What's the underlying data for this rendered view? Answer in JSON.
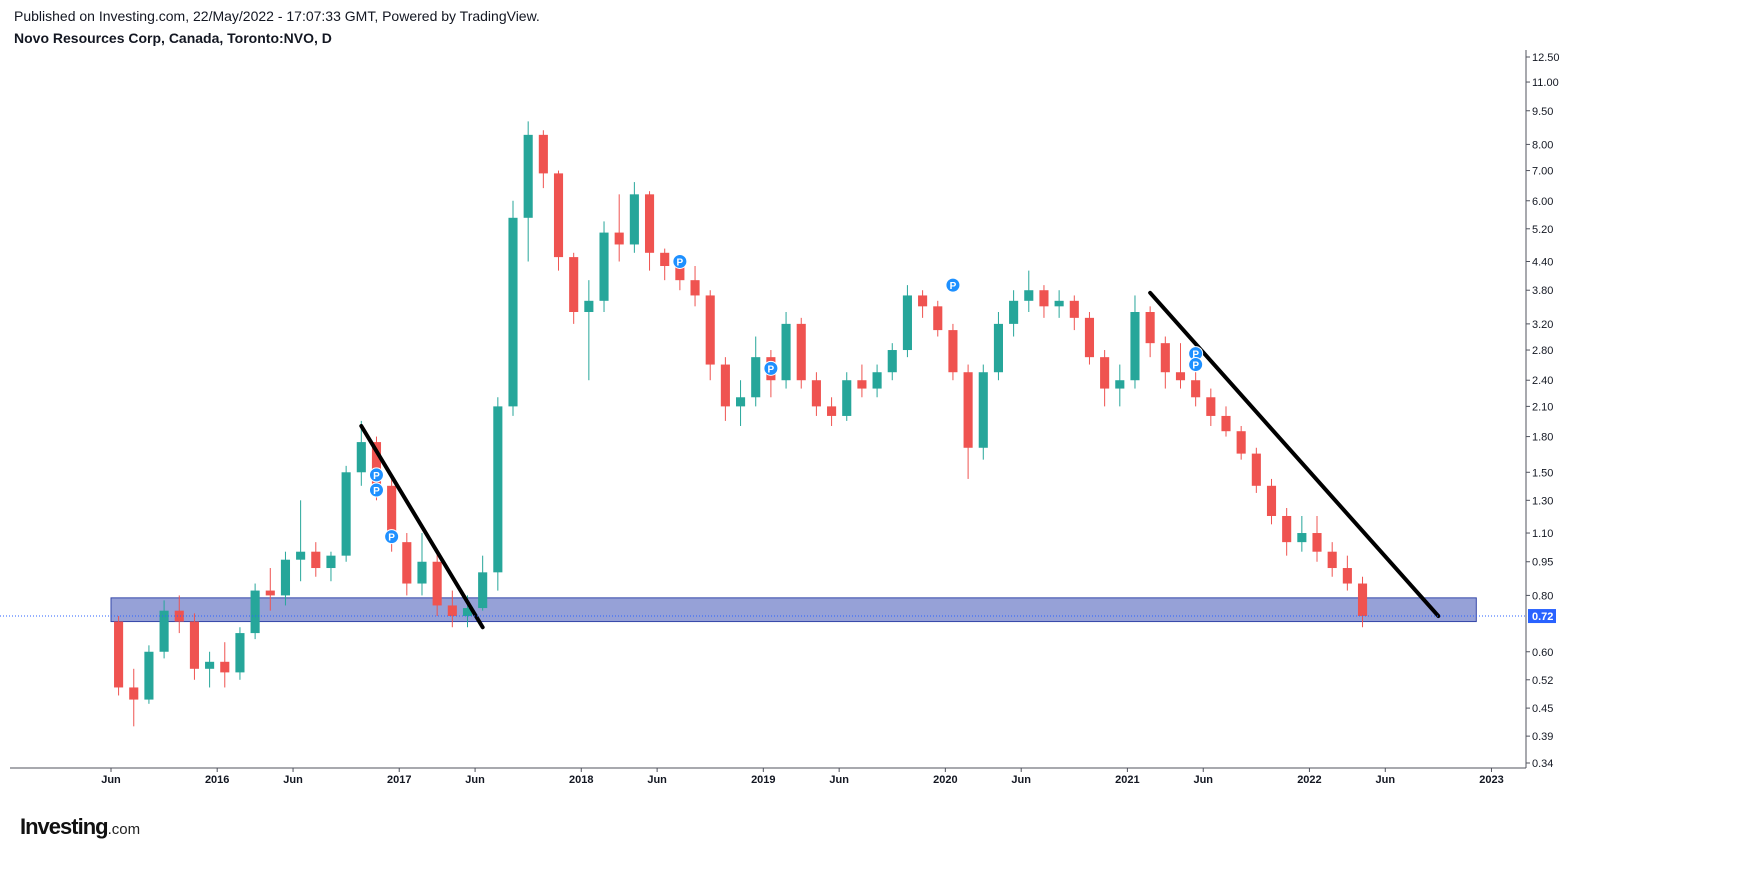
{
  "header": {
    "published": "Published on Investing.com, 22/May/2022 - 17:07:33 GMT, Powered by TradingView.",
    "symbol": "Novo Resources Corp, Canada, Toronto:NVO, D"
  },
  "logo": {
    "main": "Investing",
    "suffix": ".com"
  },
  "colors": {
    "up": "#26a69a",
    "down": "#ef5350",
    "band_fill": "#8b97d3",
    "band_stroke": "#3346a8",
    "trendline": "#000000",
    "marker": "#1e90ff",
    "price_line": "#2962ff",
    "price_tag": "#2962ff"
  },
  "chart_data": {
    "type": "candlestick",
    "scale": "log",
    "y_ticks": [
      "12.50",
      "11.00",
      "9.50",
      "8.00",
      "7.00",
      "6.00",
      "5.20",
      "4.40",
      "3.80",
      "3.20",
      "2.80",
      "2.40",
      "2.10",
      "1.80",
      "1.50",
      "1.30",
      "1.10",
      "0.95",
      "0.80",
      "0.60",
      "0.52",
      "0.45",
      "0.39",
      "0.34"
    ],
    "x_ticks": [
      "Jun",
      "2016",
      "Jun",
      "2017",
      "Jun",
      "2018",
      "Jun",
      "2019",
      "Jun",
      "2020",
      "Jun",
      "2021",
      "Jun",
      "2022",
      "Jun",
      "2023"
    ],
    "last_price": "0.72",
    "series": [
      {
        "date": "2015-06",
        "open": 0.7,
        "high": 0.72,
        "low": 0.48,
        "close": 0.5
      },
      {
        "date": "2015-07",
        "open": 0.5,
        "high": 0.55,
        "low": 0.41,
        "close": 0.47
      },
      {
        "date": "2015-08",
        "open": 0.47,
        "high": 0.62,
        "low": 0.46,
        "close": 0.6
      },
      {
        "date": "2015-09",
        "open": 0.6,
        "high": 0.78,
        "low": 0.58,
        "close": 0.74
      },
      {
        "date": "2015-10",
        "open": 0.74,
        "high": 0.8,
        "low": 0.66,
        "close": 0.7
      },
      {
        "date": "2015-11",
        "open": 0.7,
        "high": 0.73,
        "low": 0.52,
        "close": 0.55
      },
      {
        "date": "2015-12",
        "open": 0.55,
        "high": 0.6,
        "low": 0.5,
        "close": 0.57
      },
      {
        "date": "2016-01",
        "open": 0.57,
        "high": 0.63,
        "low": 0.5,
        "close": 0.54
      },
      {
        "date": "2016-02",
        "open": 0.54,
        "high": 0.68,
        "low": 0.52,
        "close": 0.66
      },
      {
        "date": "2016-03",
        "open": 0.66,
        "high": 0.85,
        "low": 0.64,
        "close": 0.82
      },
      {
        "date": "2016-04",
        "open": 0.82,
        "high": 0.92,
        "low": 0.74,
        "close": 0.8
      },
      {
        "date": "2016-05",
        "open": 0.8,
        "high": 1.0,
        "low": 0.76,
        "close": 0.96
      },
      {
        "date": "2016-06",
        "open": 0.96,
        "high": 1.3,
        "low": 0.86,
        "close": 1.0
      },
      {
        "date": "2016-07",
        "open": 1.0,
        "high": 1.05,
        "low": 0.88,
        "close": 0.92
      },
      {
        "date": "2016-08",
        "open": 0.92,
        "high": 1.0,
        "low": 0.86,
        "close": 0.98
      },
      {
        "date": "2016-09",
        "open": 0.98,
        "high": 1.55,
        "low": 0.95,
        "close": 1.5
      },
      {
        "date": "2016-10",
        "open": 1.5,
        "high": 1.95,
        "low": 1.4,
        "close": 1.75
      },
      {
        "date": "2016-11",
        "open": 1.75,
        "high": 1.8,
        "low": 1.3,
        "close": 1.4
      },
      {
        "date": "2016-12",
        "open": 1.4,
        "high": 1.45,
        "low": 1.0,
        "close": 1.05
      },
      {
        "date": "2017-01",
        "open": 1.05,
        "high": 1.1,
        "low": 0.8,
        "close": 0.85
      },
      {
        "date": "2017-02",
        "open": 0.85,
        "high": 1.1,
        "low": 0.8,
        "close": 0.95
      },
      {
        "date": "2017-03",
        "open": 0.95,
        "high": 1.0,
        "low": 0.72,
        "close": 0.76
      },
      {
        "date": "2017-04",
        "open": 0.76,
        "high": 0.82,
        "low": 0.68,
        "close": 0.72
      },
      {
        "date": "2017-05",
        "open": 0.72,
        "high": 0.8,
        "low": 0.68,
        "close": 0.75
      },
      {
        "date": "2017-06",
        "open": 0.75,
        "high": 0.98,
        "low": 0.74,
        "close": 0.9
      },
      {
        "date": "2017-07",
        "open": 0.9,
        "high": 2.2,
        "low": 0.82,
        "close": 2.1
      },
      {
        "date": "2017-08",
        "open": 2.1,
        "high": 6.0,
        "low": 2.0,
        "close": 5.5
      },
      {
        "date": "2017-09",
        "open": 5.5,
        "high": 9.0,
        "low": 4.4,
        "close": 8.4
      },
      {
        "date": "2017-10",
        "open": 8.4,
        "high": 8.6,
        "low": 6.4,
        "close": 6.9
      },
      {
        "date": "2017-11",
        "open": 6.9,
        "high": 7.0,
        "low": 4.2,
        "close": 4.5
      },
      {
        "date": "2017-12",
        "open": 4.5,
        "high": 4.6,
        "low": 3.2,
        "close": 3.4
      },
      {
        "date": "2018-01",
        "open": 3.4,
        "high": 4.0,
        "low": 2.4,
        "close": 3.6
      },
      {
        "date": "2018-02",
        "open": 3.6,
        "high": 5.4,
        "low": 3.4,
        "close": 5.1
      },
      {
        "date": "2018-03",
        "open": 5.1,
        "high": 6.2,
        "low": 4.4,
        "close": 4.8
      },
      {
        "date": "2018-04",
        "open": 4.8,
        "high": 6.6,
        "low": 4.6,
        "close": 6.2
      },
      {
        "date": "2018-05",
        "open": 6.2,
        "high": 6.3,
        "low": 4.2,
        "close": 4.6
      },
      {
        "date": "2018-06",
        "open": 4.6,
        "high": 4.7,
        "low": 4.0,
        "close": 4.3
      },
      {
        "date": "2018-07",
        "open": 4.3,
        "high": 4.5,
        "low": 3.8,
        "close": 4.0
      },
      {
        "date": "2018-08",
        "open": 4.0,
        "high": 4.3,
        "low": 3.5,
        "close": 3.7
      },
      {
        "date": "2018-09",
        "open": 3.7,
        "high": 3.8,
        "low": 2.4,
        "close": 2.6
      },
      {
        "date": "2018-10",
        "open": 2.6,
        "high": 2.7,
        "low": 1.95,
        "close": 2.1
      },
      {
        "date": "2018-11",
        "open": 2.1,
        "high": 2.4,
        "low": 1.9,
        "close": 2.2
      },
      {
        "date": "2018-12",
        "open": 2.2,
        "high": 3.0,
        "low": 2.1,
        "close": 2.7
      },
      {
        "date": "2019-01",
        "open": 2.7,
        "high": 2.8,
        "low": 2.2,
        "close": 2.4
      },
      {
        "date": "2019-02",
        "open": 2.4,
        "high": 3.4,
        "low": 2.3,
        "close": 3.2
      },
      {
        "date": "2019-03",
        "open": 3.2,
        "high": 3.3,
        "low": 2.3,
        "close": 2.4
      },
      {
        "date": "2019-04",
        "open": 2.4,
        "high": 2.5,
        "low": 2.0,
        "close": 2.1
      },
      {
        "date": "2019-05",
        "open": 2.1,
        "high": 2.2,
        "low": 1.9,
        "close": 2.0
      },
      {
        "date": "2019-06",
        "open": 2.0,
        "high": 2.5,
        "low": 1.95,
        "close": 2.4
      },
      {
        "date": "2019-07",
        "open": 2.4,
        "high": 2.6,
        "low": 2.2,
        "close": 2.3
      },
      {
        "date": "2019-08",
        "open": 2.3,
        "high": 2.6,
        "low": 2.2,
        "close": 2.5
      },
      {
        "date": "2019-09",
        "open": 2.5,
        "high": 2.9,
        "low": 2.4,
        "close": 2.8
      },
      {
        "date": "2019-10",
        "open": 2.8,
        "high": 3.9,
        "low": 2.7,
        "close": 3.7
      },
      {
        "date": "2019-11",
        "open": 3.7,
        "high": 3.8,
        "low": 3.3,
        "close": 3.5
      },
      {
        "date": "2019-12",
        "open": 3.5,
        "high": 3.6,
        "low": 3.0,
        "close": 3.1
      },
      {
        "date": "2020-01",
        "open": 3.1,
        "high": 3.2,
        "low": 2.4,
        "close": 2.5
      },
      {
        "date": "2020-02",
        "open": 2.5,
        "high": 2.6,
        "low": 1.45,
        "close": 1.7
      },
      {
        "date": "2020-03",
        "open": 1.7,
        "high": 2.6,
        "low": 1.6,
        "close": 2.5
      },
      {
        "date": "2020-04",
        "open": 2.5,
        "high": 3.4,
        "low": 2.4,
        "close": 3.2
      },
      {
        "date": "2020-05",
        "open": 3.2,
        "high": 3.8,
        "low": 3.0,
        "close": 3.6
      },
      {
        "date": "2020-06",
        "open": 3.6,
        "high": 4.2,
        "low": 3.4,
        "close": 3.8
      },
      {
        "date": "2020-07",
        "open": 3.8,
        "high": 3.9,
        "low": 3.3,
        "close": 3.5
      },
      {
        "date": "2020-08",
        "open": 3.5,
        "high": 3.8,
        "low": 3.3,
        "close": 3.6
      },
      {
        "date": "2020-09",
        "open": 3.6,
        "high": 3.7,
        "low": 3.1,
        "close": 3.3
      },
      {
        "date": "2020-10",
        "open": 3.3,
        "high": 3.4,
        "low": 2.6,
        "close": 2.7
      },
      {
        "date": "2020-11",
        "open": 2.7,
        "high": 2.8,
        "low": 2.1,
        "close": 2.3
      },
      {
        "date": "2020-12",
        "open": 2.3,
        "high": 2.6,
        "low": 2.1,
        "close": 2.4
      },
      {
        "date": "2021-01",
        "open": 2.4,
        "high": 3.7,
        "low": 2.3,
        "close": 3.4
      },
      {
        "date": "2021-02",
        "open": 3.4,
        "high": 3.5,
        "low": 2.7,
        "close": 2.9
      },
      {
        "date": "2021-03",
        "open": 2.9,
        "high": 3.0,
        "low": 2.3,
        "close": 2.5
      },
      {
        "date": "2021-04",
        "open": 2.5,
        "high": 2.9,
        "low": 2.3,
        "close": 2.4
      },
      {
        "date": "2021-05",
        "open": 2.4,
        "high": 2.5,
        "low": 2.1,
        "close": 2.2
      },
      {
        "date": "2021-06",
        "open": 2.2,
        "high": 2.3,
        "low": 1.9,
        "close": 2.0
      },
      {
        "date": "2021-07",
        "open": 2.0,
        "high": 2.1,
        "low": 1.8,
        "close": 1.85
      },
      {
        "date": "2021-08",
        "open": 1.85,
        "high": 1.9,
        "low": 1.6,
        "close": 1.65
      },
      {
        "date": "2021-09",
        "open": 1.65,
        "high": 1.7,
        "low": 1.35,
        "close": 1.4
      },
      {
        "date": "2021-10",
        "open": 1.4,
        "high": 1.45,
        "low": 1.15,
        "close": 1.2
      },
      {
        "date": "2021-11",
        "open": 1.2,
        "high": 1.25,
        "low": 0.98,
        "close": 1.05
      },
      {
        "date": "2021-12",
        "open": 1.05,
        "high": 1.2,
        "low": 1.0,
        "close": 1.1
      },
      {
        "date": "2022-01",
        "open": 1.1,
        "high": 1.2,
        "low": 0.95,
        "close": 1.0
      },
      {
        "date": "2022-02",
        "open": 1.0,
        "high": 1.05,
        "low": 0.88,
        "close": 0.92
      },
      {
        "date": "2022-03",
        "open": 0.92,
        "high": 0.98,
        "low": 0.82,
        "close": 0.85
      },
      {
        "date": "2022-04",
        "open": 0.85,
        "high": 0.88,
        "low": 0.68,
        "close": 0.72
      }
    ],
    "support_band": {
      "low": 0.7,
      "high": 0.79,
      "from": "2015-06",
      "to": "2022-11"
    },
    "trendlines": [
      {
        "from": {
          "date": "2016-10",
          "price": 1.9
        },
        "to": {
          "date": "2017-06",
          "price": 0.68
        }
      },
      {
        "from": {
          "date": "2021-02",
          "price": 3.75
        },
        "to": {
          "date": "2022-09",
          "price": 0.72
        }
      }
    ],
    "markers": [
      {
        "label": "P",
        "date": "2016-11",
        "price": 1.48
      },
      {
        "label": "P",
        "date": "2016-11",
        "price": 1.37
      },
      {
        "label": "P",
        "date": "2016-12",
        "price": 1.08
      },
      {
        "label": "P",
        "date": "2018-07",
        "price": 4.4
      },
      {
        "label": "P",
        "date": "2019-01",
        "price": 2.55
      },
      {
        "label": "P",
        "date": "2020-01",
        "price": 3.9
      },
      {
        "label": "P",
        "date": "2021-05",
        "price": 2.75
      },
      {
        "label": "P",
        "date": "2021-05",
        "price": 2.6
      }
    ]
  }
}
